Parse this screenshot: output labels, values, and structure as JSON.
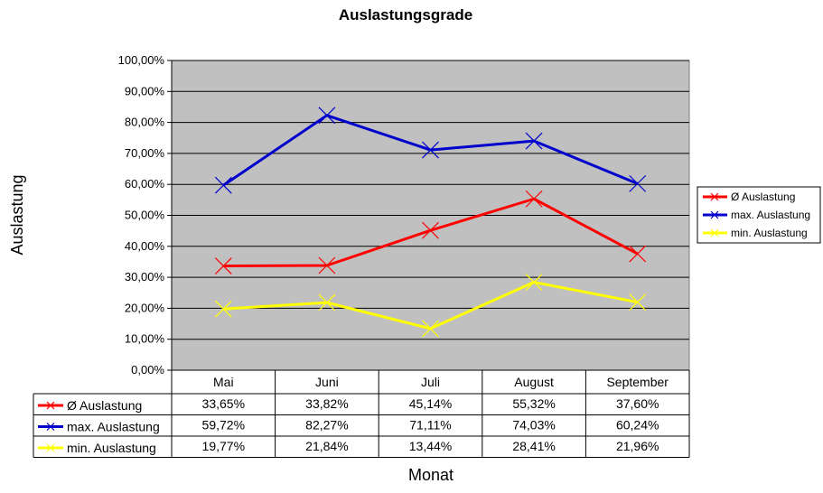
{
  "chart_data": {
    "type": "line",
    "title": "Auslastungsgrade",
    "xlabel": "Monat",
    "ylabel": "Auslastung",
    "categories": [
      "Mai",
      "Juni",
      "Juli",
      "August",
      "September"
    ],
    "ylim": [
      0,
      100
    ],
    "yticks": [
      "0,00%",
      "10,00%",
      "20,00%",
      "30,00%",
      "40,00%",
      "50,00%",
      "60,00%",
      "70,00%",
      "80,00%",
      "90,00%",
      "100,00%"
    ],
    "grid": true,
    "plot_background": "#C0C0C0",
    "legend_position": "right",
    "series": [
      {
        "name": "Ø Auslastung",
        "color": "#FF0000",
        "values": [
          33.65,
          33.82,
          45.14,
          55.32,
          37.6
        ],
        "labels": [
          "33,65%",
          "33,82%",
          "45,14%",
          "55,32%",
          "37,60%"
        ]
      },
      {
        "name": "max. Auslastung",
        "color": "#0000CC",
        "values": [
          59.72,
          82.27,
          71.11,
          74.03,
          60.24
        ],
        "labels": [
          "59,72%",
          "82,27%",
          "71,11%",
          "74,03%",
          "60,24%"
        ]
      },
      {
        "name": "min. Auslastung",
        "color": "#FFFF00",
        "values": [
          19.77,
          21.84,
          13.44,
          28.41,
          21.96
        ],
        "labels": [
          "19,77%",
          "21,84%",
          "13,44%",
          "28,41%",
          "21,96%"
        ]
      }
    ]
  }
}
